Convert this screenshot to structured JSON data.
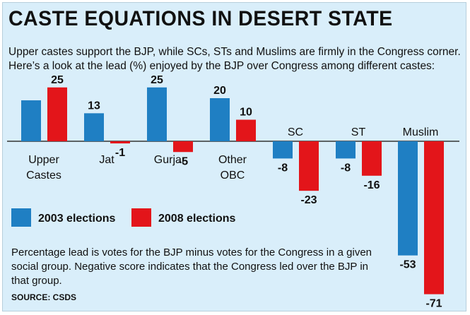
{
  "title": "CASTE EQUATIONS IN DESERT STATE",
  "subtitle_line1": "Upper castes support the BJP, while SCs, STs and Muslims are firmly in the Congress corner.",
  "subtitle_line2": "Here’s a look at the lead (%) enjoyed by the BJP over Congress among different castes:",
  "note": "Percentage lead is votes for the BJP minus votes for the Congress in a given social group. Negative score indicates that the Congress led over the BJP in that group.",
  "source": "SOURCE: CSDS",
  "colors": {
    "background": "#d9eefa",
    "series_2003": "#1f7fc3",
    "series_2008": "#e3151a",
    "axis": "#333333"
  },
  "chart_data": {
    "type": "bar",
    "categories": [
      {
        "lines": [
          "Upper",
          "Castes"
        ],
        "label_position": "below"
      },
      {
        "lines": [
          "Jat"
        ],
        "label_position": "below"
      },
      {
        "lines": [
          "Gurjar"
        ],
        "label_position": "below"
      },
      {
        "lines": [
          "Other",
          "OBC"
        ],
        "label_position": "below"
      },
      {
        "lines": [
          "SC"
        ],
        "label_position": "above"
      },
      {
        "lines": [
          "ST"
        ],
        "label_position": "above"
      },
      {
        "lines": [
          "Muslim"
        ],
        "label_position": "above"
      }
    ],
    "series": [
      {
        "name": "2003 elections",
        "color": "#1f7fc3",
        "values": [
          null,
          13,
          25,
          20,
          -8,
          -8,
          -53
        ]
      },
      {
        "name": "2008 elections",
        "color": "#e3151a",
        "values": [
          25,
          -1,
          -5,
          10,
          -23,
          -16,
          -71
        ]
      }
    ],
    "estimated_values_unlabeled": {
      "Upper Castes 2003": 19
    },
    "legend": {
      "position": "bottom-left"
    },
    "grid": false
  }
}
